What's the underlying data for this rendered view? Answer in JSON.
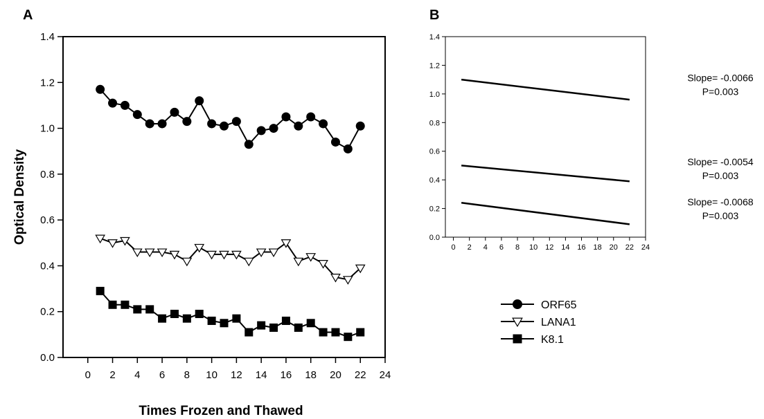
{
  "chart_data": [
    {
      "panel": "A",
      "type": "line",
      "xlabel": "Times Frozen and Thawed",
      "ylabel": "Optical Density",
      "xlim": [
        -2,
        24
      ],
      "ylim": [
        0,
        1.4
      ],
      "xticks": [
        0,
        2,
        4,
        6,
        8,
        10,
        12,
        14,
        16,
        18,
        20,
        22,
        24
      ],
      "yticks": [
        "0.0",
        "0.2",
        "0.4",
        "0.6",
        "0.8",
        "1.0",
        "1.2",
        "1.4"
      ],
      "grid": false,
      "legend_position": "bottom-right",
      "x": [
        1,
        2,
        3,
        4,
        5,
        6,
        7,
        8,
        9,
        10,
        11,
        12,
        13,
        14,
        15,
        16,
        17,
        18,
        19,
        20,
        21,
        22
      ],
      "series": [
        {
          "name": "ORF65",
          "marker": "filled-circle",
          "values": [
            1.17,
            1.11,
            1.1,
            1.06,
            1.02,
            1.02,
            1.07,
            1.03,
            1.12,
            1.02,
            1.01,
            1.03,
            0.93,
            0.99,
            1.0,
            1.05,
            1.01,
            1.05,
            1.02,
            0.94,
            0.91,
            1.01
          ]
        },
        {
          "name": "LANA1",
          "marker": "open-triangle-down",
          "values": [
            0.52,
            0.5,
            0.51,
            0.46,
            0.46,
            0.46,
            0.45,
            0.42,
            0.48,
            0.45,
            0.45,
            0.45,
            0.42,
            0.46,
            0.46,
            0.5,
            0.42,
            0.44,
            0.41,
            0.35,
            0.34,
            0.39
          ]
        },
        {
          "name": "K8.1",
          "marker": "filled-square",
          "values": [
            0.29,
            0.23,
            0.23,
            0.21,
            0.21,
            0.17,
            0.19,
            0.17,
            0.19,
            0.16,
            0.15,
            0.17,
            0.11,
            0.14,
            0.13,
            0.16,
            0.13,
            0.15,
            0.11,
            0.11,
            0.09,
            0.11
          ]
        }
      ]
    },
    {
      "panel": "B",
      "type": "line",
      "xlim": [
        -1,
        24
      ],
      "ylim": [
        0,
        1.4
      ],
      "xticks": [
        0,
        2,
        4,
        6,
        8,
        10,
        12,
        14,
        16,
        18,
        20,
        22,
        24
      ],
      "yticks": [
        "0.0",
        "0.2",
        "0.4",
        "0.6",
        "0.8",
        "1.0",
        "1.2",
        "1.4"
      ],
      "grid": false,
      "series": [
        {
          "x": [
            1,
            22
          ],
          "values": [
            1.1,
            0.96
          ],
          "annotation": [
            "Slope= -0.0066",
            "P=0.003"
          ]
        },
        {
          "x": [
            1,
            22
          ],
          "values": [
            0.5,
            0.39
          ],
          "annotation": [
            "Slope= -0.0054",
            "P=0.003"
          ]
        },
        {
          "x": [
            1,
            22
          ],
          "values": [
            0.24,
            0.09
          ],
          "annotation": [
            "Slope= -0.0068",
            "P=0.003"
          ]
        }
      ]
    }
  ]
}
